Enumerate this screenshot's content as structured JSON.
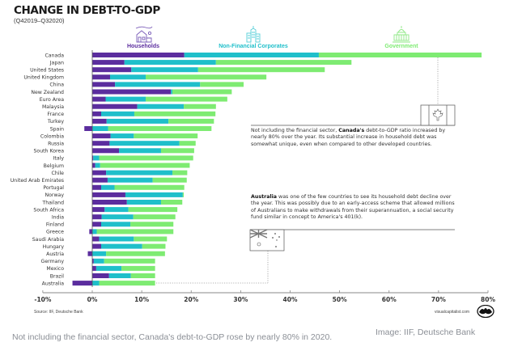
{
  "header": {
    "title": "CHANGE IN DEBT-TO-GDP",
    "subtitle": "(Q42019–Q32020)"
  },
  "legend": [
    {
      "label": "Households",
      "icon": "house-icon",
      "color": "#5b2d9e"
    },
    {
      "label": "Non-Financial Corporates",
      "icon": "office-building-icon",
      "color": "#1fbfca"
    },
    {
      "label": "Government",
      "icon": "capitol-building-icon",
      "color": "#7eeb72"
    }
  ],
  "chart_data": {
    "type": "bar",
    "orientation": "horizontal",
    "stacked": true,
    "title": "CHANGE IN DEBT-TO-GDP",
    "subtitle": "(Q42019–Q32020)",
    "xlabel": "",
    "ylabel": "",
    "xlim": [
      -10,
      80
    ],
    "x_ticks": [
      "-10%",
      "0%",
      "10%",
      "20%",
      "30%",
      "40%",
      "50%",
      "60%",
      "70%",
      "80%"
    ],
    "x_tick_values": [
      -10,
      0,
      10,
      20,
      30,
      40,
      50,
      60,
      70,
      80
    ],
    "legend_position": "top",
    "grid": false,
    "categories": [
      "Canada",
      "Japan",
      "United States",
      "United Kingdom",
      "China",
      "New Zealand",
      "Euro Area",
      "Malaysia",
      "France",
      "Turkey",
      "Spain",
      "Colombia",
      "Russia",
      "South Korea",
      "Italy",
      "Belgium",
      "Chile",
      "United Arab Emirates",
      "Portugal",
      "Norway",
      "Thailand",
      "South Africa",
      "India",
      "Finland",
      "Greece",
      "Saudi Arabia",
      "Hungary",
      "Austria",
      "Germany",
      "Mexico",
      "Brazil",
      "Australia"
    ],
    "series": [
      {
        "name": "Households",
        "color": "#5b2d9e",
        "values": [
          18.6,
          6.5,
          7.9,
          3.6,
          4.6,
          15.9,
          2.7,
          9.1,
          1.8,
          2.9,
          -1.6,
          3.7,
          3.5,
          5.4,
          0.2,
          0.6,
          2.8,
          3.1,
          1.8,
          6.7,
          7.0,
          2.5,
          1.9,
          1.8,
          -0.6,
          1.4,
          1.8,
          -0.9,
          0.3,
          0.8,
          3.4,
          -4.0
        ]
      },
      {
        "name": "Non-Financial Corporates",
        "color": "#1fbfca",
        "values": [
          27.2,
          18.5,
          13.5,
          7.2,
          17.2,
          0.3,
          8.1,
          9.4,
          6.7,
          12.5,
          3.2,
          4.7,
          14.1,
          8.5,
          1.2,
          1.0,
          13.4,
          9.1,
          2.7,
          11.6,
          6.9,
          4.8,
          6.4,
          5.9,
          0.9,
          7.0,
          8.3,
          2.8,
          2.1,
          5.1,
          4.4,
          1.4
        ]
      },
      {
        "name": "Government",
        "color": "#7eeb72",
        "values": [
          32.9,
          27.4,
          25.6,
          24.4,
          8.8,
          12.0,
          16.5,
          6.5,
          16.4,
          9.2,
          20.9,
          12.9,
          3.3,
          6.7,
          19.0,
          18.1,
          3.0,
          6.9,
          14.1,
          0.2,
          4.3,
          9.9,
          8.5,
          8.7,
          15.5,
          6.7,
          4.7,
          11.9,
          10.3,
          6.8,
          4.9,
          11.3
        ]
      }
    ],
    "annotations": [
      {
        "target": "Canada",
        "flag": "canada-flag",
        "text_lead": "Not including the financial sector, ",
        "text_bold": "Canada's",
        "text_rest": " debt-to-GDP ratio increased by nearly 80% over the year. Its substantial increase in household debt was somewhat unique, even when compared to other developed countries."
      },
      {
        "target": "Australia",
        "flag": "australia-flag",
        "text_bold": "Australia",
        "text_rest": " was one of the few countries to see its household debt decline over the year. This was possibly due to an early-access scheme that allowed millions of Australians to make withdrawals from their superannuation, a social security fund similar in concept to America's 401(k)."
      }
    ]
  },
  "footer": {
    "source": "Source: IIF, Deutsche Bank",
    "site": "visualcapitalist.com"
  },
  "page": {
    "caption": "Not including the financial sector, Canada's debt-to-GDP rose by nearly 80% in 2020.",
    "credit": "Image: IIF, Deutsche Bank"
  }
}
